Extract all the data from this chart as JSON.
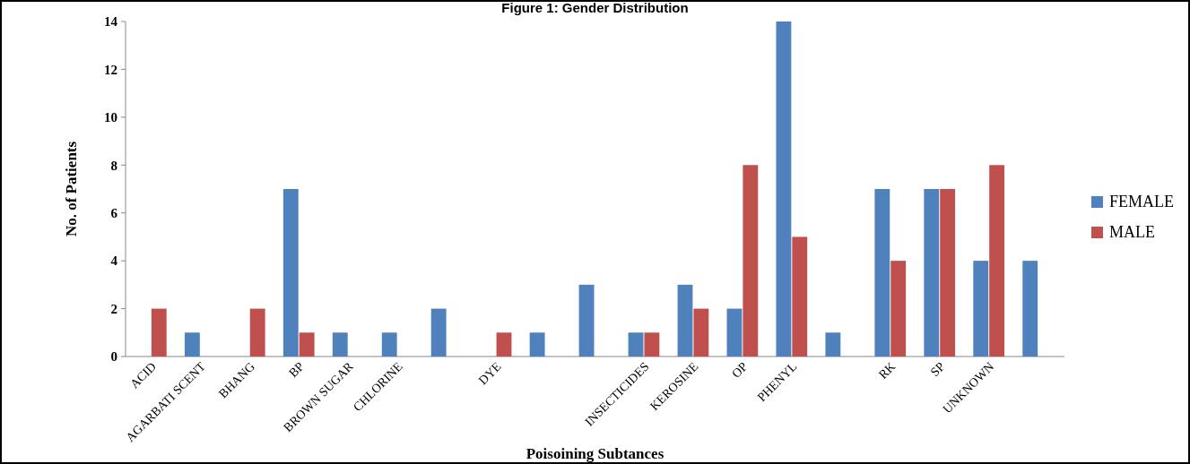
{
  "chart_data": {
    "type": "bar",
    "title": "Figure 1: Gender Distribution",
    "xlabel": "Poisoining Subtances",
    "ylabel": "No. of Patients",
    "categories": [
      "ACID",
      "AGARBATI SCENT",
      "BHANG",
      "BP",
      "BROWN SUGAR",
      "CHLORINE",
      null,
      "DYE",
      null,
      null,
      "INSECTICIDES",
      "KEROSINE",
      "OP",
      "PHENYL",
      null,
      "RK",
      "SP",
      "UNKNOWN",
      null
    ],
    "series": [
      {
        "name": "FEMALE",
        "color": "#4f81bd",
        "values": [
          0,
          1,
          0,
          7,
          1,
          1,
          2,
          0,
          1,
          3,
          1,
          3,
          2,
          14,
          1,
          7,
          7,
          4,
          4
        ]
      },
      {
        "name": "MALE",
        "color": "#c0504d",
        "values": [
          2,
          0,
          2,
          1,
          0,
          0,
          0,
          1,
          0,
          0,
          1,
          2,
          8,
          5,
          0,
          4,
          7,
          8,
          0
        ]
      }
    ],
    "ylim": [
      0,
      14
    ],
    "yticks": [
      0,
      2,
      4,
      6,
      8,
      10,
      12,
      14
    ],
    "legend": "right"
  }
}
